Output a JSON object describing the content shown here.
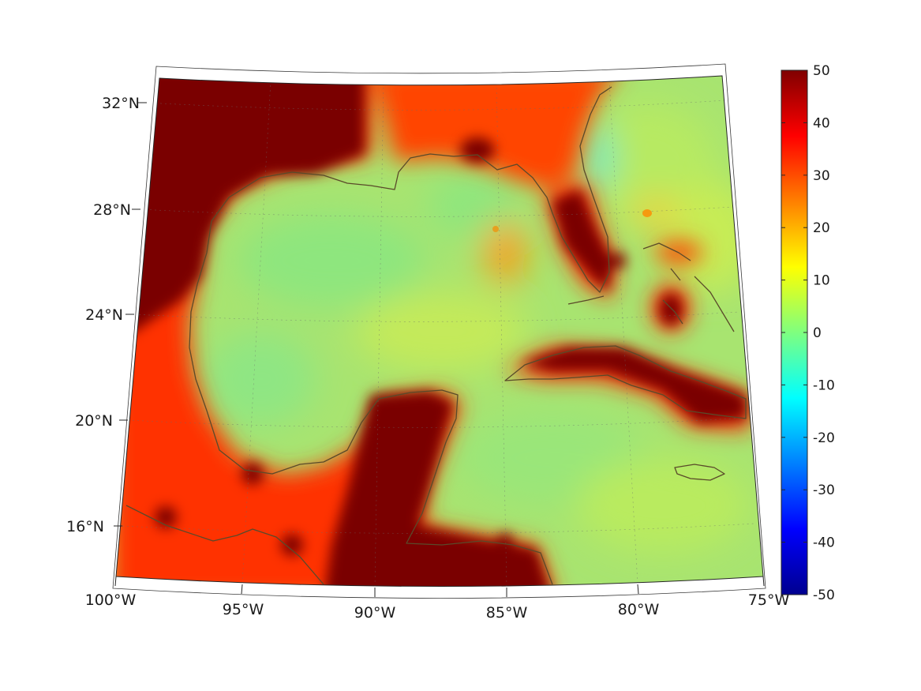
{
  "map": {
    "lon_range": [
      -100,
      -75
    ],
    "lat_range": [
      14,
      33
    ],
    "lon_ticks": [
      {
        "value": -100,
        "label": "100°W"
      },
      {
        "value": -95,
        "label": "95°W"
      },
      {
        "value": -90,
        "label": "90°W"
      },
      {
        "value": -85,
        "label": "85°W"
      },
      {
        "value": -80,
        "label": "80°W"
      },
      {
        "value": -75,
        "label": "75°W"
      }
    ],
    "lat_ticks": [
      {
        "value": 16,
        "label": "16°N"
      },
      {
        "value": 20,
        "label": "20°N"
      },
      {
        "value": 24,
        "label": "24°N"
      },
      {
        "value": 28,
        "label": "28°N"
      },
      {
        "value": 32,
        "label": "32°N"
      }
    ],
    "colormap": "jet",
    "land_color": "#7a0000",
    "ocean_color": "#9be46e",
    "coastline_color": "#5a4a2a"
  },
  "colorbar": {
    "min": -50,
    "max": 50,
    "ticks": [
      "50",
      "40",
      "30",
      "20",
      "10",
      "0",
      "-10",
      "-20",
      "-30",
      "-40",
      "-50"
    ]
  }
}
